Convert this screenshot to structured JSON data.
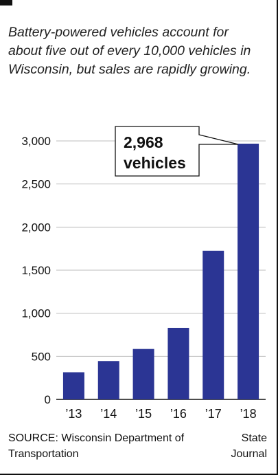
{
  "subtitle": "Battery-powered vehicles account for about five out of every 10,000 vehicles in Wisconsin, but sales are rapidly growing.",
  "source": "SOURCE: Wisconsin Department of Transportation",
  "credit": "State Journal",
  "colors": {
    "bar": "#2b3594",
    "grid": "#bdbdbd",
    "text": "#111111"
  },
  "chart_data": {
    "type": "bar",
    "categories": [
      "’13",
      "’14",
      "’15",
      "’16",
      "’17",
      "’18"
    ],
    "values": [
      315,
      445,
      585,
      830,
      1725,
      2968
    ],
    "yticks": [
      0,
      500,
      1000,
      1500,
      2000,
      2500,
      3000
    ],
    "ytick_labels": [
      "0",
      "500",
      "1,000",
      "1,500",
      "2,000",
      "2,500",
      "3,000"
    ],
    "ylim": [
      0,
      3000
    ],
    "grid": true,
    "annotation": {
      "line1": "2,968",
      "line2": "vehicles",
      "target": "’18"
    }
  }
}
